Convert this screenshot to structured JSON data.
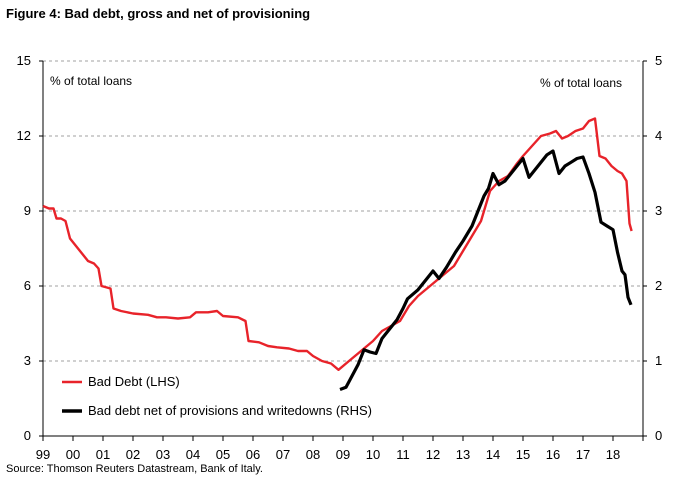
{
  "figure_title": "Figure 4: Bad debt, gross and net of provisioning",
  "source": "Source: Thomson Reuters Datastream, Bank of Italy.",
  "chart_data": {
    "type": "line",
    "title": "Figure 4: Bad debt, gross and net of provisioning",
    "left_axis": {
      "label": "% of total loans",
      "min": 0,
      "max": 15,
      "ticks": [
        0,
        3,
        6,
        9,
        12,
        15
      ]
    },
    "right_axis": {
      "label": "% of total loans",
      "min": 0,
      "max": 5,
      "ticks": [
        0,
        1,
        2,
        3,
        4,
        5
      ]
    },
    "x_axis": {
      "min": 1999,
      "max": 2019,
      "tick_labels": [
        "99",
        "00",
        "01",
        "02",
        "03",
        "04",
        "05",
        "06",
        "07",
        "08",
        "09",
        "10",
        "11",
        "12",
        "13",
        "14",
        "15",
        "16",
        "17",
        "18"
      ]
    },
    "grid": "horizontal dashed",
    "legend_position": "bottom-left",
    "series": [
      {
        "name": "Bad Debt (LHS)",
        "axis": "left",
        "color": "#e8232a",
        "points": [
          [
            1999.0,
            9.2
          ],
          [
            1999.2,
            9.1
          ],
          [
            1999.35,
            9.1
          ],
          [
            1999.45,
            8.7
          ],
          [
            1999.6,
            8.7
          ],
          [
            1999.75,
            8.6
          ],
          [
            1999.9,
            7.9
          ],
          [
            2000.1,
            7.6
          ],
          [
            2000.3,
            7.3
          ],
          [
            2000.5,
            7.0
          ],
          [
            2000.7,
            6.9
          ],
          [
            2000.85,
            6.7
          ],
          [
            2000.95,
            6.0
          ],
          [
            2001.25,
            5.9
          ],
          [
            2001.35,
            5.1
          ],
          [
            2001.6,
            5.0
          ],
          [
            2002.0,
            4.9
          ],
          [
            2002.5,
            4.85
          ],
          [
            2002.8,
            4.75
          ],
          [
            2003.1,
            4.75
          ],
          [
            2003.5,
            4.7
          ],
          [
            2003.9,
            4.75
          ],
          [
            2004.1,
            4.95
          ],
          [
            2004.5,
            4.95
          ],
          [
            2004.8,
            5.0
          ],
          [
            2005.0,
            4.8
          ],
          [
            2005.5,
            4.75
          ],
          [
            2005.75,
            4.6
          ],
          [
            2005.85,
            3.8
          ],
          [
            2006.2,
            3.75
          ],
          [
            2006.5,
            3.6
          ],
          [
            2006.8,
            3.55
          ],
          [
            2007.2,
            3.5
          ],
          [
            2007.5,
            3.4
          ],
          [
            2007.8,
            3.4
          ],
          [
            2008.0,
            3.2
          ],
          [
            2008.3,
            3.0
          ],
          [
            2008.6,
            2.9
          ],
          [
            2008.85,
            2.65
          ],
          [
            2009.2,
            3.0
          ],
          [
            2009.5,
            3.3
          ],
          [
            2009.8,
            3.6
          ],
          [
            2010.0,
            3.8
          ],
          [
            2010.3,
            4.2
          ],
          [
            2010.6,
            4.4
          ],
          [
            2010.9,
            4.6
          ],
          [
            2011.2,
            5.2
          ],
          [
            2011.5,
            5.6
          ],
          [
            2011.8,
            5.9
          ],
          [
            2012.1,
            6.2
          ],
          [
            2012.4,
            6.5
          ],
          [
            2012.7,
            6.8
          ],
          [
            2013.0,
            7.4
          ],
          [
            2013.3,
            8.0
          ],
          [
            2013.6,
            8.6
          ],
          [
            2013.9,
            9.8
          ],
          [
            2014.2,
            10.2
          ],
          [
            2014.5,
            10.4
          ],
          [
            2014.8,
            10.9
          ],
          [
            2015.0,
            11.2
          ],
          [
            2015.3,
            11.6
          ],
          [
            2015.6,
            12.0
          ],
          [
            2015.9,
            12.1
          ],
          [
            2016.1,
            12.2
          ],
          [
            2016.3,
            11.9
          ],
          [
            2016.5,
            12.0
          ],
          [
            2016.75,
            12.2
          ],
          [
            2017.0,
            12.3
          ],
          [
            2017.2,
            12.6
          ],
          [
            2017.4,
            12.7
          ],
          [
            2017.55,
            11.2
          ],
          [
            2017.75,
            11.1
          ],
          [
            2017.95,
            10.8
          ],
          [
            2018.15,
            10.6
          ],
          [
            2018.3,
            10.5
          ],
          [
            2018.45,
            10.2
          ],
          [
            2018.55,
            8.5
          ],
          [
            2018.62,
            8.2
          ]
        ]
      },
      {
        "name": "Bad debt net of provisions and writedowns (RHS)",
        "axis": "right",
        "color": "#000000",
        "points": [
          [
            2008.9,
            0.62
          ],
          [
            2009.1,
            0.65
          ],
          [
            2009.3,
            0.8
          ],
          [
            2009.5,
            0.95
          ],
          [
            2009.7,
            1.15
          ],
          [
            2009.9,
            1.12
          ],
          [
            2010.1,
            1.1
          ],
          [
            2010.3,
            1.3
          ],
          [
            2010.5,
            1.4
          ],
          [
            2010.8,
            1.55
          ],
          [
            2011.0,
            1.7
          ],
          [
            2011.15,
            1.83
          ],
          [
            2011.5,
            1.95
          ],
          [
            2011.8,
            2.1
          ],
          [
            2012.0,
            2.2
          ],
          [
            2012.2,
            2.1
          ],
          [
            2012.45,
            2.25
          ],
          [
            2012.75,
            2.45
          ],
          [
            2013.0,
            2.6
          ],
          [
            2013.3,
            2.8
          ],
          [
            2013.5,
            3.0
          ],
          [
            2013.7,
            3.2
          ],
          [
            2013.85,
            3.3
          ],
          [
            2014.0,
            3.5
          ],
          [
            2014.2,
            3.35
          ],
          [
            2014.4,
            3.4
          ],
          [
            2014.6,
            3.5
          ],
          [
            2014.8,
            3.6
          ],
          [
            2015.0,
            3.7
          ],
          [
            2015.2,
            3.45
          ],
          [
            2015.4,
            3.55
          ],
          [
            2015.6,
            3.65
          ],
          [
            2015.8,
            3.75
          ],
          [
            2016.0,
            3.8
          ],
          [
            2016.2,
            3.5
          ],
          [
            2016.4,
            3.6
          ],
          [
            2016.6,
            3.65
          ],
          [
            2016.8,
            3.7
          ],
          [
            2017.0,
            3.72
          ],
          [
            2017.2,
            3.5
          ],
          [
            2017.4,
            3.25
          ],
          [
            2017.6,
            2.85
          ],
          [
            2017.8,
            2.8
          ],
          [
            2018.0,
            2.75
          ],
          [
            2018.15,
            2.45
          ],
          [
            2018.3,
            2.2
          ],
          [
            2018.4,
            2.15
          ],
          [
            2018.5,
            1.85
          ],
          [
            2018.6,
            1.75
          ]
        ]
      }
    ]
  }
}
